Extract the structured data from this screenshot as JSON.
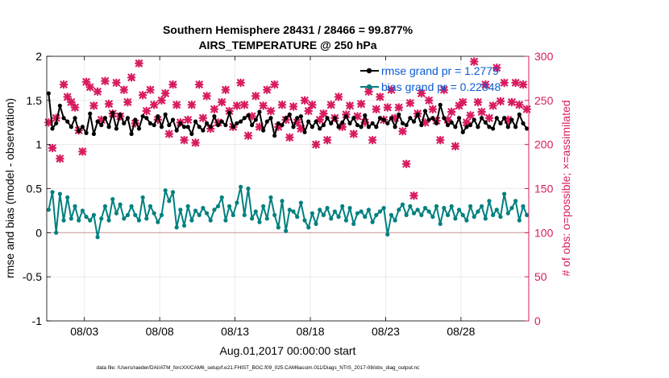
{
  "chart_data": {
    "type": "line",
    "title_line1": "Southern Hemisphere 28431 / 28466 = 99.877%",
    "title_line2": "AIRS_TEMPERATURE @ 250 hPa",
    "xlabel": "Aug.01,2017 00:00:00 start",
    "ylabel_left": "rmse and bias (model - observation)",
    "ylabel_right": "# of obs: o=possible; ×=assimilated",
    "footnote": "data file: /Users/raeder/DAI/ATM_forcXX/CAM6_setup/f.e21.FHIST_BGC.f09_025.CAM6assim.011/Diags_NTrS_2017-08/obs_diag_output.nc",
    "x_range_days": [
      0.5,
      32.5
    ],
    "xticks": [
      {
        "day": 3,
        "label": "08/03"
      },
      {
        "day": 8,
        "label": "08/08"
      },
      {
        "day": 13,
        "label": "08/13"
      },
      {
        "day": 18,
        "label": "08/18"
      },
      {
        "day": 23,
        "label": "08/23"
      },
      {
        "day": 28,
        "label": "08/28"
      }
    ],
    "ylim_left": [
      -1,
      2
    ],
    "yticks_left": [
      {
        "v": -1,
        "label": "-1"
      },
      {
        "v": -0.5,
        "label": "-0.5"
      },
      {
        "v": 0,
        "label": "0"
      },
      {
        "v": 0.5,
        "label": "0.5"
      },
      {
        "v": 1,
        "label": "1"
      },
      {
        "v": 1.5,
        "label": "1.5"
      },
      {
        "v": 2,
        "label": "2"
      }
    ],
    "ylim_right": [
      0,
      300
    ],
    "yticks_right": [
      {
        "v": 0,
        "label": "0"
      },
      {
        "v": 50,
        "label": "50"
      },
      {
        "v": 100,
        "label": "100"
      },
      {
        "v": 150,
        "label": "150"
      },
      {
        "v": 200,
        "label": "200"
      },
      {
        "v": 250,
        "label": "250"
      },
      {
        "v": 300,
        "label": "300"
      }
    ],
    "grid": true,
    "zero_line": true,
    "legend": {
      "placement": "top-right",
      "entries": [
        {
          "label": "rmse grand pr = 1.2779",
          "color": "#000000"
        },
        {
          "label": "bias grand pr = 0.22848",
          "color": "#008080"
        }
      ]
    },
    "colors": {
      "rmse": "#000000",
      "bias": "#008080",
      "obs": "#d81b60",
      "zero": "#d0a0a0"
    },
    "series": [
      {
        "name": "rmse grand pr = 1.2779",
        "x": [
          0.625,
          0.875,
          1.125,
          1.375,
          1.625,
          1.875,
          2.125,
          2.375,
          2.625,
          2.875,
          3.125,
          3.375,
          3.625,
          3.875,
          4.125,
          4.375,
          4.625,
          4.875,
          5.125,
          5.375,
          5.625,
          5.875,
          6.125,
          6.375,
          6.625,
          6.875,
          7.125,
          7.375,
          7.625,
          7.875,
          8.125,
          8.375,
          8.625,
          8.875,
          9.125,
          9.375,
          9.625,
          9.875,
          10.125,
          10.375,
          10.625,
          10.875,
          11.125,
          11.375,
          11.625,
          11.875,
          12.125,
          12.375,
          12.625,
          12.875,
          13.125,
          13.375,
          13.625,
          13.875,
          14.125,
          14.375,
          14.625,
          14.875,
          15.125,
          15.375,
          15.625,
          15.875,
          16.125,
          16.375,
          16.625,
          16.875,
          17.125,
          17.375,
          17.625,
          17.875,
          18.125,
          18.375,
          18.625,
          18.875,
          19.125,
          19.375,
          19.625,
          19.875,
          20.125,
          20.375,
          20.625,
          20.875,
          21.125,
          21.375,
          21.625,
          21.875,
          22.125,
          22.375,
          22.625,
          22.875,
          23.125,
          23.375,
          23.625,
          23.875,
          24.125,
          24.375,
          24.625,
          24.875,
          25.125,
          25.375,
          25.625,
          25.875,
          26.125,
          26.375,
          26.625,
          26.875,
          27.125,
          27.375,
          27.625,
          27.875,
          28.125,
          28.375,
          28.625,
          28.875,
          29.125,
          29.375,
          29.625,
          29.875,
          30.125,
          30.375,
          30.625,
          30.875,
          31.125,
          31.375,
          31.625,
          31.875,
          32.125,
          32.375
        ],
        "values": [
          1.58,
          1.18,
          1.24,
          1.44,
          1.3,
          1.26,
          1.2,
          1.3,
          1.15,
          1.2,
          1.13,
          1.35,
          1.12,
          1.26,
          1.22,
          1.3,
          1.2,
          1.36,
          1.18,
          1.34,
          1.24,
          1.3,
          1.12,
          1.28,
          1.18,
          1.32,
          1.3,
          1.24,
          1.22,
          1.32,
          1.2,
          1.34,
          1.22,
          1.28,
          1.16,
          1.24,
          1.2,
          1.2,
          1.12,
          1.26,
          1.2,
          1.16,
          1.24,
          1.2,
          1.32,
          1.22,
          1.26,
          1.22,
          1.36,
          1.2,
          1.24,
          1.26,
          1.3,
          1.33,
          1.22,
          1.28,
          1.37,
          1.16,
          1.26,
          1.3,
          1.1,
          1.24,
          1.22,
          1.3,
          1.34,
          1.2,
          1.3,
          1.32,
          1.14,
          1.26,
          1.2,
          1.26,
          1.18,
          1.22,
          1.3,
          1.24,
          1.3,
          1.2,
          1.25,
          1.32,
          1.24,
          1.3,
          1.22,
          1.2,
          1.33,
          1.2,
          1.24,
          1.2,
          1.3,
          1.28,
          1.24,
          1.3,
          1.2,
          1.34,
          1.24,
          1.22,
          1.3,
          1.26,
          1.34,
          1.22,
          1.38,
          1.28,
          1.3,
          1.24,
          1.45,
          1.3,
          1.22,
          1.25,
          1.2,
          1.3,
          1.14,
          1.2,
          1.22,
          1.28,
          1.2,
          1.3,
          1.25,
          1.2,
          1.18,
          1.3,
          1.24,
          1.3,
          1.2,
          1.28,
          1.2,
          1.34,
          1.24,
          1.18
        ]
      },
      {
        "name": "bias grand pr = 0.22848",
        "x": [
          0.625,
          0.875,
          1.125,
          1.375,
          1.625,
          1.875,
          2.125,
          2.375,
          2.625,
          2.875,
          3.125,
          3.375,
          3.625,
          3.875,
          4.125,
          4.375,
          4.625,
          4.875,
          5.125,
          5.375,
          5.625,
          5.875,
          6.125,
          6.375,
          6.625,
          6.875,
          7.125,
          7.375,
          7.625,
          7.875,
          8.125,
          8.375,
          8.625,
          8.875,
          9.125,
          9.375,
          9.625,
          9.875,
          10.125,
          10.375,
          10.625,
          10.875,
          11.125,
          11.375,
          11.625,
          11.875,
          12.125,
          12.375,
          12.625,
          12.875,
          13.125,
          13.375,
          13.625,
          13.875,
          14.125,
          14.375,
          14.625,
          14.875,
          15.125,
          15.375,
          15.625,
          15.875,
          16.125,
          16.375,
          16.625,
          16.875,
          17.125,
          17.375,
          17.625,
          17.875,
          18.125,
          18.375,
          18.625,
          18.875,
          19.125,
          19.375,
          19.625,
          19.875,
          20.125,
          20.375,
          20.625,
          20.875,
          21.125,
          21.375,
          21.625,
          21.875,
          22.125,
          22.375,
          22.625,
          22.875,
          23.125,
          23.375,
          23.625,
          23.875,
          24.125,
          24.375,
          24.625,
          24.875,
          25.125,
          25.375,
          25.625,
          25.875,
          26.125,
          26.375,
          26.625,
          26.875,
          27.125,
          27.375,
          27.625,
          27.875,
          28.125,
          28.375,
          28.625,
          28.875,
          29.125,
          29.375,
          29.625,
          29.875,
          30.125,
          30.375,
          30.625,
          30.875,
          31.125,
          31.375,
          31.625,
          31.875,
          32.125,
          32.375
        ],
        "values": [
          0.26,
          0.46,
          0.0,
          0.44,
          0.14,
          0.4,
          0.16,
          0.3,
          0.14,
          0.25,
          0.18,
          0.14,
          0.2,
          -0.05,
          0.16,
          0.3,
          0.14,
          0.38,
          0.22,
          0.32,
          0.16,
          0.2,
          0.3,
          0.2,
          0.14,
          0.4,
          0.16,
          0.3,
          0.22,
          0.12,
          0.2,
          0.48,
          0.36,
          0.46,
          0.06,
          0.26,
          0.08,
          0.3,
          0.14,
          0.25,
          0.2,
          0.28,
          0.22,
          0.14,
          0.26,
          0.3,
          0.4,
          0.14,
          0.3,
          0.2,
          0.34,
          0.52,
          0.2,
          0.5,
          0.16,
          0.24,
          0.12,
          0.3,
          0.16,
          0.4,
          0.2,
          0.06,
          0.36,
          0.02,
          0.26,
          0.24,
          0.18,
          0.34,
          0.14,
          0.06,
          0.22,
          0.1,
          0.26,
          0.2,
          0.28,
          0.16,
          0.24,
          0.18,
          0.3,
          0.14,
          0.28,
          0.1,
          0.22,
          0.24,
          0.18,
          0.26,
          0.12,
          0.2,
          0.24,
          0.28,
          -0.02,
          0.2,
          0.14,
          0.26,
          0.32,
          0.2,
          0.3,
          0.22,
          0.26,
          0.2,
          0.28,
          0.24,
          0.18,
          0.3,
          0.1,
          0.28,
          0.2,
          0.3,
          0.16,
          0.26,
          0.2,
          0.14,
          0.3,
          0.18,
          0.24,
          0.3,
          0.16,
          0.36,
          0.2,
          0.26,
          0.18,
          0.44,
          0.22,
          0.28,
          0.36,
          0.14,
          0.3,
          0.2
        ]
      },
      {
        "name": "# of obs",
        "x": [
          0.625,
          0.875,
          1.125,
          1.375,
          1.625,
          1.875,
          2.125,
          2.375,
          2.625,
          2.875,
          3.125,
          3.375,
          3.625,
          3.875,
          4.125,
          4.375,
          4.625,
          4.875,
          5.125,
          5.375,
          5.625,
          5.875,
          6.125,
          6.375,
          6.625,
          6.875,
          7.125,
          7.375,
          7.625,
          7.875,
          8.125,
          8.375,
          8.625,
          8.875,
          9.125,
          9.375,
          9.625,
          9.875,
          10.125,
          10.375,
          10.625,
          10.875,
          11.125,
          11.375,
          11.625,
          11.875,
          12.125,
          12.375,
          12.625,
          12.875,
          13.125,
          13.375,
          13.625,
          13.875,
          14.125,
          14.375,
          14.625,
          14.875,
          15.125,
          15.375,
          15.625,
          15.875,
          16.125,
          16.375,
          16.625,
          16.875,
          17.125,
          17.375,
          17.625,
          17.875,
          18.125,
          18.375,
          18.625,
          18.875,
          19.125,
          19.375,
          19.625,
          19.875,
          20.125,
          20.375,
          20.625,
          20.875,
          21.125,
          21.375,
          21.625,
          21.875,
          22.125,
          22.375,
          22.625,
          22.875,
          23.125,
          23.375,
          23.625,
          23.875,
          24.125,
          24.375,
          24.625,
          24.875,
          25.125,
          25.375,
          25.625,
          25.875,
          26.125,
          26.375,
          26.625,
          26.875,
          27.125,
          27.375,
          27.625,
          27.875,
          28.125,
          28.375,
          28.625,
          28.875,
          29.125,
          29.375,
          29.625,
          29.875,
          30.125,
          30.375,
          30.625,
          30.875,
          31.125,
          31.375,
          31.625,
          31.875,
          32.125,
          32.375
        ],
        "values": [
          225,
          196,
          230,
          184,
          268,
          254,
          248,
          242,
          216,
          192,
          271,
          265,
          244,
          260,
          228,
          272,
          246,
          235,
          270,
          232,
          262,
          248,
          276,
          224,
          292,
          256,
          238,
          262,
          245,
          228,
          250,
          258,
          212,
          268,
          245,
          225,
          205,
          228,
          245,
          202,
          268,
          230,
          255,
          218,
          240,
          225,
          248,
          262,
          238,
          220,
          244,
          270,
          245,
          210,
          232,
          255,
          220,
          244,
          262,
          238,
          268,
          220,
          245,
          228,
          208,
          243,
          225,
          218,
          250,
          238,
          245,
          200,
          228,
          235,
          205,
          245,
          230,
          254,
          220,
          234,
          244,
          212,
          232,
          246,
          225,
          260,
          205,
          240,
          254,
          228,
          242,
          262,
          230,
          242,
          215,
          178,
          247,
          142,
          235,
          258,
          225,
          250,
          240,
          227,
          205,
          262,
          228,
          237,
          198,
          244,
          248,
          225,
          233,
          294,
          248,
          237,
          268,
          230,
          244,
          287,
          249,
          270,
          228,
          248,
          270,
          245,
          268,
          240
        ]
      }
    ]
  }
}
